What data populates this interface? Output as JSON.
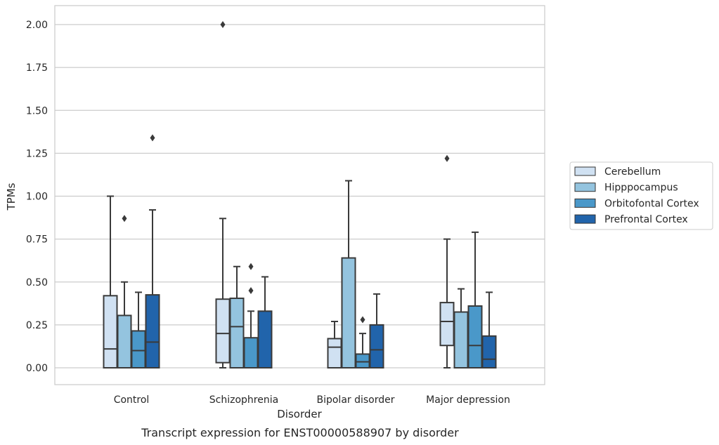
{
  "caption": "Transcript expression for ENST00000588907 by disorder",
  "chart_data": {
    "type": "box",
    "title": "",
    "xlabel": "Disorder",
    "ylabel": "TPMs",
    "ylim": [
      -0.1,
      2.1
    ],
    "yticks": [
      0.0,
      0.25,
      0.5,
      0.75,
      1.0,
      1.25,
      1.5,
      1.75,
      2.0
    ],
    "ytick_labels": [
      "0.00",
      "0.25",
      "0.50",
      "0.75",
      "1.00",
      "1.25",
      "1.50",
      "1.75",
      "2.00"
    ],
    "grid": "horizontal",
    "legend_position": "right",
    "categories": [
      "Control",
      "Schizophrenia",
      "Bipolar disorder",
      "Major depression"
    ],
    "series": [
      {
        "name": "Cerebellum",
        "color": "#d0e1f2",
        "boxes": [
          {
            "min": 0.0,
            "q1": 0.0,
            "median": 0.11,
            "q3": 0.42,
            "max": 1.0,
            "outliers": []
          },
          {
            "min": 0.0,
            "q1": 0.03,
            "median": 0.2,
            "q3": 0.4,
            "max": 0.87,
            "outliers": [
              2.0
            ]
          },
          {
            "min": 0.0,
            "q1": 0.0,
            "median": 0.12,
            "q3": 0.17,
            "max": 0.27,
            "outliers": []
          },
          {
            "min": 0.0,
            "q1": 0.13,
            "median": 0.27,
            "q3": 0.38,
            "max": 0.75,
            "outliers": [
              1.22
            ]
          }
        ]
      },
      {
        "name": "Hipppocampus",
        "color": "#94c4df",
        "boxes": [
          {
            "min": 0.0,
            "q1": 0.0,
            "median": 0.0,
            "q3": 0.305,
            "max": 0.5,
            "outliers": [
              0.87
            ]
          },
          {
            "min": 0.0,
            "q1": 0.0,
            "median": 0.24,
            "q3": 0.405,
            "max": 0.59,
            "outliers": []
          },
          {
            "min": 0.0,
            "q1": 0.0,
            "median": 0.0,
            "q3": 0.64,
            "max": 1.09,
            "outliers": []
          },
          {
            "min": 0.0,
            "q1": 0.0,
            "median": 0.0,
            "q3": 0.325,
            "max": 0.46,
            "outliers": []
          }
        ]
      },
      {
        "name": "Orbitofontal Cortex",
        "color": "#4a98c9",
        "boxes": [
          {
            "min": 0.0,
            "q1": 0.0,
            "median": 0.1,
            "q3": 0.215,
            "max": 0.44,
            "outliers": []
          },
          {
            "min": 0.0,
            "q1": 0.0,
            "median": 0.0,
            "q3": 0.175,
            "max": 0.33,
            "outliers": [
              0.45,
              0.59
            ]
          },
          {
            "min": 0.0,
            "q1": 0.0,
            "median": 0.035,
            "q3": 0.08,
            "max": 0.2,
            "outliers": [
              0.28
            ]
          },
          {
            "min": 0.0,
            "q1": 0.0,
            "median": 0.13,
            "q3": 0.36,
            "max": 0.79,
            "outliers": []
          }
        ]
      },
      {
        "name": "Prefrontal Cortex",
        "color": "#2164ab",
        "boxes": [
          {
            "min": 0.0,
            "q1": 0.0,
            "median": 0.15,
            "q3": 0.425,
            "max": 0.92,
            "outliers": [
              1.34
            ]
          },
          {
            "min": 0.0,
            "q1": 0.0,
            "median": 0.0,
            "q3": 0.33,
            "max": 0.53,
            "outliers": []
          },
          {
            "min": 0.0,
            "q1": 0.0,
            "median": 0.105,
            "q3": 0.25,
            "max": 0.43,
            "outliers": []
          },
          {
            "min": 0.0,
            "q1": 0.0,
            "median": 0.05,
            "q3": 0.185,
            "max": 0.44,
            "outliers": []
          }
        ]
      }
    ]
  }
}
